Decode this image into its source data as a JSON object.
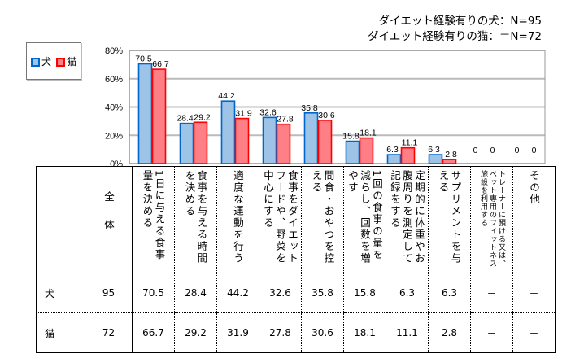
{
  "header": {
    "n_dog": "ダイエット経験有りの犬：N=95",
    "n_cat": "ダイエット経験有りの猫：＝N=72"
  },
  "legend": [
    {
      "label": "犬",
      "color": "#9DC3E6",
      "border": "#0066CC"
    },
    {
      "label": "猫",
      "color": "#FF7F86",
      "border": "#FF0000"
    }
  ],
  "chart_data": {
    "type": "bar",
    "categories": [
      "1日に与える食事量を決める",
      "食事を与える時間を決める",
      "適度な運動を行う",
      "食事をダイエットフードや、野菜を中心にする",
      "間食・おやつを控える",
      "1回の食事の量を減らし、回数を増やす",
      "定期的に体重やお腹周りを測定して記録をする",
      "サプリメントを与える",
      "トレーナーに預ける又は、ペット専用のフィットネス施設を利用する",
      "その他"
    ],
    "series": [
      {
        "name": "犬",
        "values": [
          70.5,
          28.4,
          44.2,
          32.6,
          35.8,
          15.8,
          6.3,
          6.3,
          0,
          0
        ],
        "labels": [
          "70.5",
          "28.4",
          "44.2",
          "32.6",
          "35.8",
          "15.8",
          "6.3",
          "6.3",
          "0",
          "0"
        ]
      },
      {
        "name": "猫",
        "values": [
          66.7,
          29.2,
          31.9,
          27.8,
          30.6,
          18.1,
          11.1,
          2.8,
          0,
          0
        ],
        "labels": [
          "66.7",
          "29.2",
          "31.9",
          "27.8",
          "30.6",
          "18.1",
          "11.1",
          "2.8",
          "0",
          "0"
        ]
      }
    ],
    "yticks": [
      "0%",
      "20%",
      "40%",
      "60%",
      "80%"
    ],
    "ylim": [
      0,
      80
    ],
    "grid": true,
    "legend_position": "left"
  },
  "table": {
    "total_header": "全体",
    "rows": [
      {
        "label": "犬",
        "total": "95",
        "values": [
          "70.5",
          "28.4",
          "44.2",
          "32.6",
          "35.8",
          "15.8",
          "6.3",
          "6.3",
          "－",
          "－"
        ]
      },
      {
        "label": "猫",
        "total": "72",
        "values": [
          "66.7",
          "29.2",
          "31.9",
          "27.8",
          "30.6",
          "18.1",
          "11.1",
          "2.8",
          "－",
          "－"
        ]
      }
    ]
  }
}
